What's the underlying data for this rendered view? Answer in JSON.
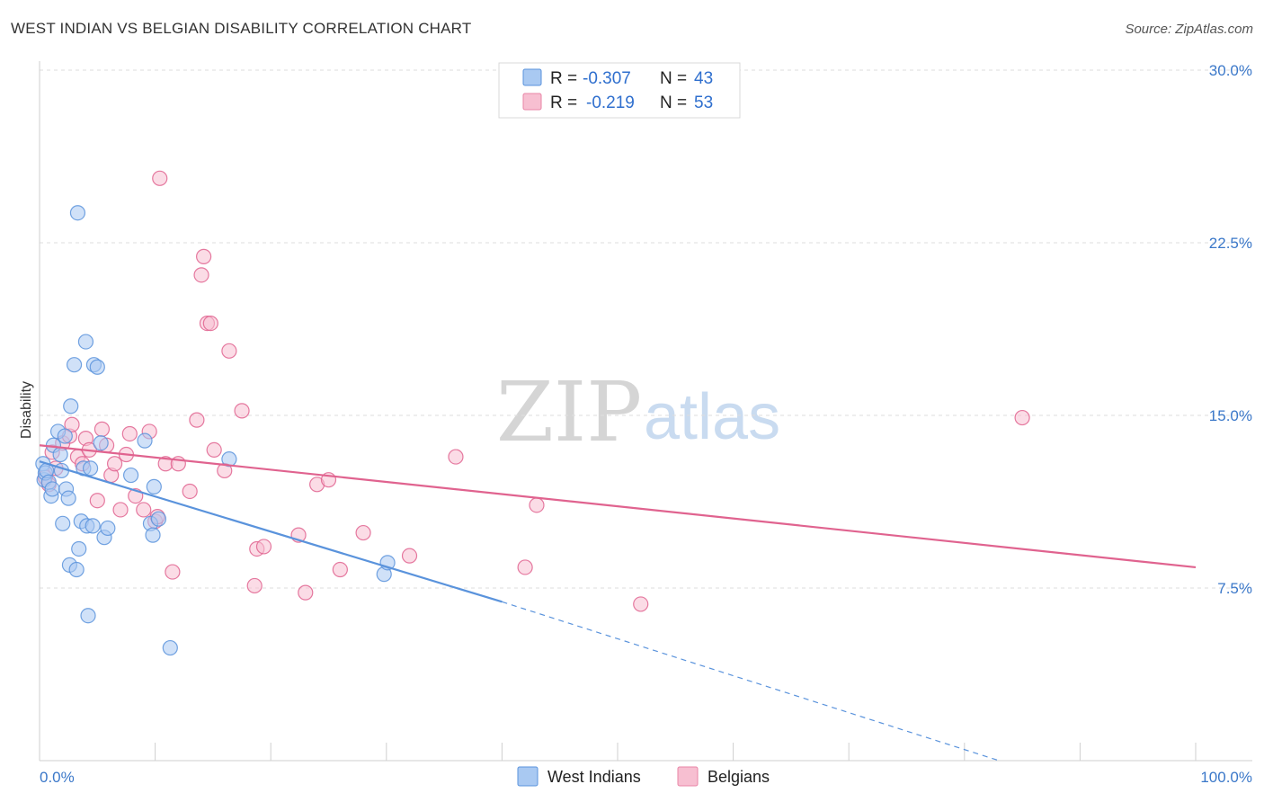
{
  "header": {
    "title": "WEST INDIAN VS BELGIAN DISABILITY CORRELATION CHART",
    "source": "Source: ZipAtlas.com"
  },
  "watermark": {
    "zip": "ZIP",
    "atlas": "atlas"
  },
  "legend": {
    "r_label": "R =",
    "n_label": "N =",
    "rows": [
      {
        "name": "West Indians",
        "r": "-0.307",
        "n": "43",
        "fill": "#a9c9f2",
        "stroke": "#5a93dc"
      },
      {
        "name": "Belgians",
        "r": "-0.219",
        "n": "53",
        "fill": "#f7bfd1",
        "stroke": "#e884a6"
      }
    ]
  },
  "chart_data": {
    "type": "scatter",
    "title": "WEST INDIAN VS BELGIAN DISABILITY CORRELATION CHART",
    "xlabel": "",
    "ylabel": "Disability",
    "xlim": [
      0,
      100
    ],
    "ylim": [
      0,
      30
    ],
    "x_tick_labels": [
      "0.0%",
      "100.0%"
    ],
    "y_ticks": [
      7.5,
      15.0,
      22.5,
      30.0
    ],
    "y_tick_labels": [
      "7.5%",
      "15.0%",
      "22.5%",
      "30.0%"
    ],
    "grid": true,
    "legend_position": "top-center",
    "series": [
      {
        "name": "West Indians",
        "color": "#5a93dc",
        "fill": "#a9c9f2",
        "r": -0.307,
        "n": 43,
        "trend": {
          "x0": 0,
          "y0": 13.0,
          "x1": 40,
          "y1": 6.9,
          "dashed_to_x": 83,
          "dashed_to_y": 0.0
        },
        "points": [
          [
            0.3,
            12.9
          ],
          [
            0.4,
            12.2
          ],
          [
            0.5,
            12.5
          ],
          [
            0.6,
            12.6
          ],
          [
            0.8,
            12.1
          ],
          [
            1.0,
            11.5
          ],
          [
            1.1,
            11.8
          ],
          [
            1.2,
            13.7
          ],
          [
            1.6,
            14.3
          ],
          [
            1.8,
            13.3
          ],
          [
            1.9,
            12.6
          ],
          [
            2.0,
            10.3
          ],
          [
            2.2,
            14.1
          ],
          [
            2.3,
            11.8
          ],
          [
            2.5,
            11.4
          ],
          [
            2.6,
            8.5
          ],
          [
            2.7,
            15.4
          ],
          [
            3.0,
            17.2
          ],
          [
            3.2,
            8.3
          ],
          [
            3.4,
            9.2
          ],
          [
            3.3,
            23.8
          ],
          [
            3.6,
            10.4
          ],
          [
            3.8,
            12.7
          ],
          [
            4.0,
            18.2
          ],
          [
            4.1,
            10.2
          ],
          [
            4.2,
            6.3
          ],
          [
            4.4,
            12.7
          ],
          [
            4.6,
            10.2
          ],
          [
            4.7,
            17.2
          ],
          [
            5.0,
            17.1
          ],
          [
            5.3,
            13.8
          ],
          [
            5.6,
            9.7
          ],
          [
            5.9,
            10.1
          ],
          [
            7.9,
            12.4
          ],
          [
            9.1,
            13.9
          ],
          [
            9.6,
            10.3
          ],
          [
            9.8,
            9.8
          ],
          [
            9.9,
            11.9
          ],
          [
            10.3,
            10.5
          ],
          [
            11.3,
            4.9
          ],
          [
            16.4,
            13.1
          ],
          [
            29.8,
            8.1
          ],
          [
            30.1,
            8.6
          ]
        ]
      },
      {
        "name": "Belgians",
        "color": "#e0638f",
        "fill": "#f7bfd1",
        "r": -0.219,
        "n": 53,
        "trend": {
          "x0": 0,
          "y0": 13.7,
          "x1": 100,
          "y1": 8.4
        },
        "points": [
          [
            0.5,
            12.3
          ],
          [
            0.8,
            12.0
          ],
          [
            1.1,
            13.4
          ],
          [
            1.4,
            12.7
          ],
          [
            2.0,
            13.8
          ],
          [
            2.6,
            14.1
          ],
          [
            2.8,
            14.6
          ],
          [
            3.3,
            13.2
          ],
          [
            3.7,
            12.9
          ],
          [
            4.0,
            14.0
          ],
          [
            4.3,
            13.5
          ],
          [
            5.0,
            11.3
          ],
          [
            5.4,
            14.4
          ],
          [
            5.8,
            13.7
          ],
          [
            6.2,
            12.4
          ],
          [
            6.5,
            12.9
          ],
          [
            7.0,
            10.9
          ],
          [
            7.5,
            13.3
          ],
          [
            7.8,
            14.2
          ],
          [
            8.3,
            11.5
          ],
          [
            9.0,
            10.9
          ],
          [
            9.5,
            14.3
          ],
          [
            10.0,
            10.4
          ],
          [
            10.2,
            10.6
          ],
          [
            10.4,
            25.3
          ],
          [
            10.9,
            12.9
          ],
          [
            11.5,
            8.2
          ],
          [
            12.0,
            12.9
          ],
          [
            13.0,
            11.7
          ],
          [
            13.6,
            14.8
          ],
          [
            14.0,
            21.1
          ],
          [
            14.2,
            21.9
          ],
          [
            14.5,
            19.0
          ],
          [
            14.8,
            19.0
          ],
          [
            15.1,
            13.5
          ],
          [
            16.0,
            12.6
          ],
          [
            16.4,
            17.8
          ],
          [
            17.5,
            15.2
          ],
          [
            18.6,
            7.6
          ],
          [
            18.8,
            9.2
          ],
          [
            19.4,
            9.3
          ],
          [
            22.4,
            9.8
          ],
          [
            23.0,
            7.3
          ],
          [
            24.0,
            12.0
          ],
          [
            25.0,
            12.2
          ],
          [
            26.0,
            8.3
          ],
          [
            28.0,
            9.9
          ],
          [
            32.0,
            8.9
          ],
          [
            36.0,
            13.2
          ],
          [
            42.0,
            8.4
          ],
          [
            43.0,
            11.1
          ],
          [
            52.0,
            6.8
          ],
          [
            85.0,
            14.9
          ]
        ]
      }
    ]
  }
}
